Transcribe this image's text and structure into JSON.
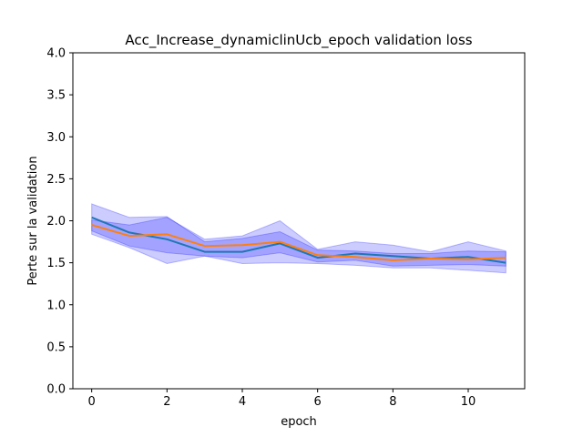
{
  "chart_data": {
    "type": "line",
    "title": "Acc_Increase_dynamiclinUcb_epoch validation loss",
    "xlabel": "epoch",
    "ylabel": "Perte sur la validation",
    "xlim": [
      -0.5,
      11.5
    ],
    "ylim": [
      0.0,
      4.0
    ],
    "xticks": [
      0,
      2,
      4,
      6,
      8,
      10
    ],
    "yticks": [
      0.0,
      0.5,
      1.0,
      1.5,
      2.0,
      2.5,
      3.0,
      3.5,
      4.0
    ],
    "xtick_labels": [
      "0",
      "2",
      "4",
      "6",
      "8",
      "10"
    ],
    "ytick_labels": [
      "0.0",
      "0.5",
      "1.0",
      "1.5",
      "2.0",
      "2.5",
      "3.0",
      "3.5",
      "4.0"
    ],
    "grid": false,
    "x": [
      0,
      1,
      2,
      3,
      4,
      5,
      6,
      7,
      8,
      9,
      10,
      11
    ],
    "series": [
      {
        "color": "#1f77b4",
        "band_color": "#0000ff",
        "values": [
          2.04,
          1.86,
          1.78,
          1.63,
          1.63,
          1.73,
          1.56,
          1.61,
          1.58,
          1.55,
          1.57,
          1.5
        ],
        "lower": [
          1.88,
          1.7,
          1.62,
          1.58,
          1.56,
          1.62,
          1.51,
          1.53,
          1.46,
          1.47,
          1.48,
          1.46
        ],
        "upper": [
          2.2,
          2.04,
          2.05,
          1.75,
          1.79,
          1.87,
          1.65,
          1.64,
          1.61,
          1.61,
          1.64,
          1.63
        ]
      },
      {
        "color": "#ff7f0e",
        "band_color": "#0000ff",
        "values": [
          1.95,
          1.82,
          1.84,
          1.7,
          1.71,
          1.75,
          1.59,
          1.57,
          1.53,
          1.55,
          1.54,
          1.56
        ],
        "lower": [
          1.84,
          1.68,
          1.49,
          1.58,
          1.49,
          1.5,
          1.49,
          1.47,
          1.44,
          1.44,
          1.41,
          1.38
        ],
        "upper": [
          2.01,
          1.95,
          2.04,
          1.78,
          1.82,
          2.0,
          1.66,
          1.75,
          1.71,
          1.63,
          1.75,
          1.64
        ]
      }
    ]
  }
}
